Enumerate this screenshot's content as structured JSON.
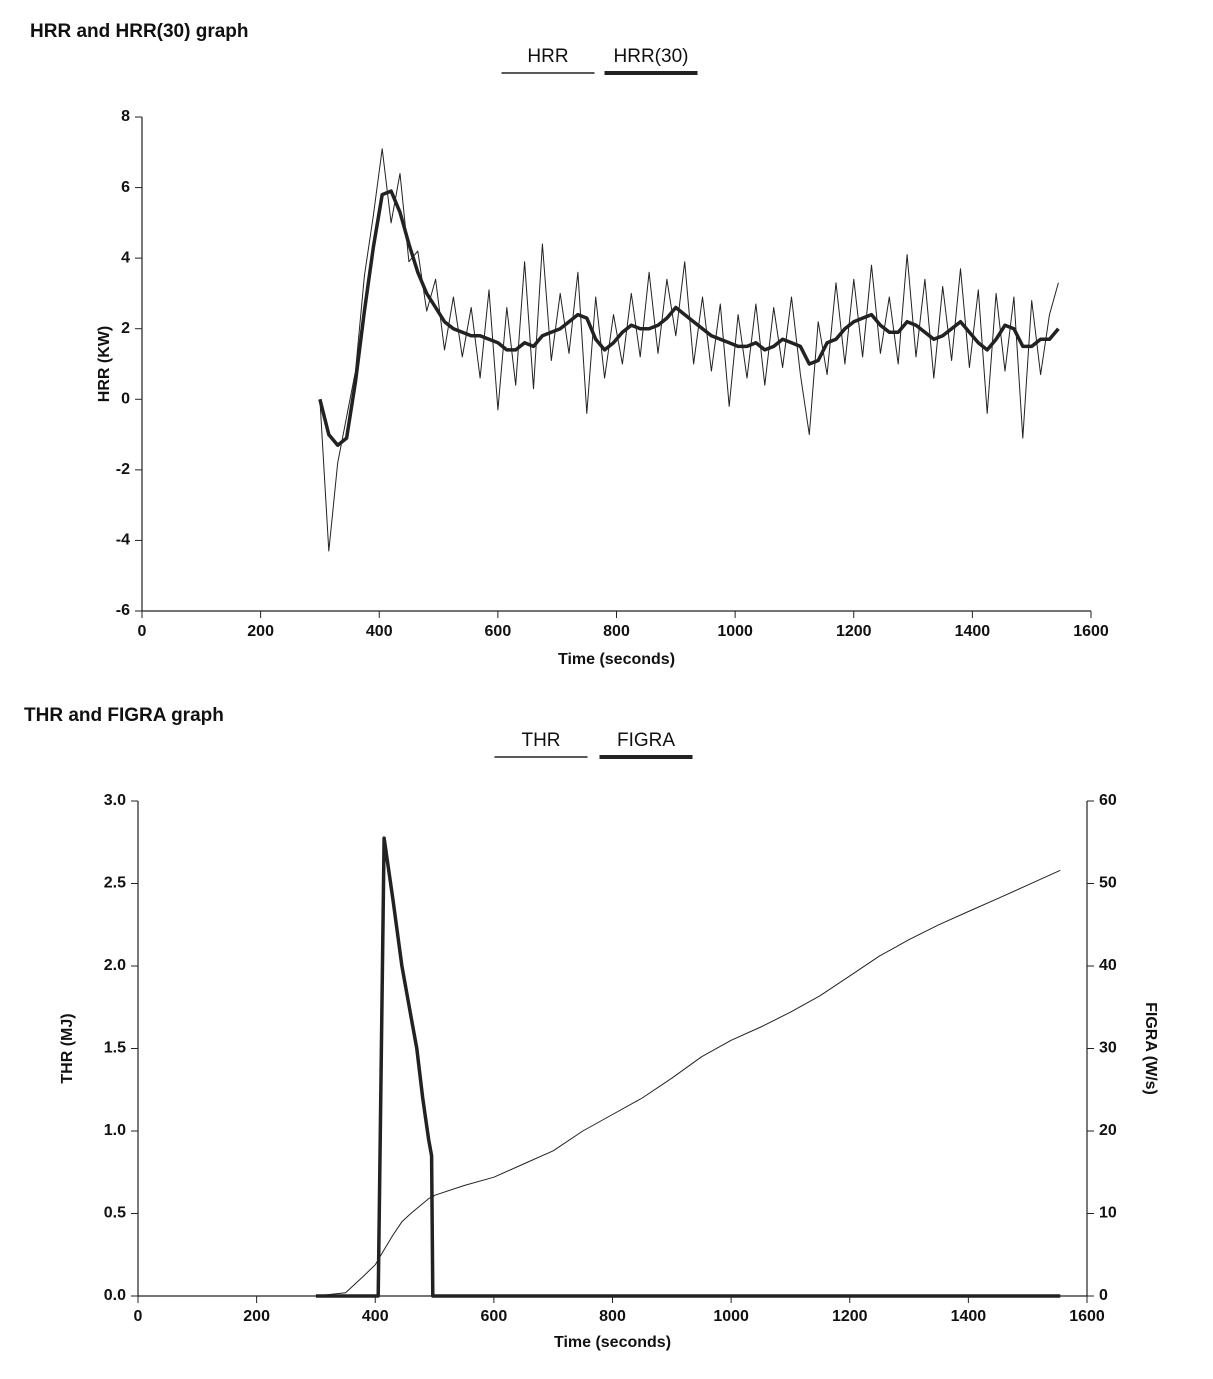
{
  "chart_data": [
    {
      "type": "line",
      "title": "HRR and HRR(30) graph",
      "xlabel": "Time (seconds)",
      "ylabel": "HRR (KW)",
      "xlim": [
        0,
        1600
      ],
      "xticks": [
        0,
        200,
        400,
        600,
        800,
        1000,
        1200,
        1400,
        1600
      ],
      "ylim": [
        -6,
        8
      ],
      "yticks": [
        -6,
        -4,
        -2,
        0,
        2,
        4,
        6,
        8
      ],
      "x": [
        300,
        315,
        330,
        345,
        360,
        375,
        390,
        405,
        420,
        435,
        450,
        465,
        480,
        495,
        510,
        525,
        540,
        555,
        570,
        585,
        600,
        615,
        630,
        645,
        660,
        675,
        690,
        705,
        720,
        735,
        750,
        765,
        780,
        795,
        810,
        825,
        840,
        855,
        870,
        885,
        900,
        915,
        930,
        945,
        960,
        975,
        990,
        1005,
        1020,
        1035,
        1050,
        1065,
        1080,
        1095,
        1110,
        1125,
        1140,
        1155,
        1170,
        1185,
        1200,
        1215,
        1230,
        1245,
        1260,
        1275,
        1290,
        1305,
        1320,
        1335,
        1350,
        1365,
        1380,
        1395,
        1410,
        1425,
        1440,
        1455,
        1470,
        1485,
        1500,
        1515,
        1530,
        1545
      ],
      "series": [
        {
          "name": "HRR",
          "color": "#222222",
          "width": 1,
          "values": [
            0,
            -4.3,
            -1.8,
            -0.5,
            0.8,
            3.5,
            5.2,
            7.1,
            5.0,
            6.4,
            3.9,
            4.2,
            2.5,
            3.4,
            1.4,
            2.9,
            1.2,
            2.6,
            0.6,
            3.1,
            -0.3,
            2.6,
            0.4,
            3.9,
            0.3,
            4.4,
            1.1,
            3.0,
            1.3,
            3.6,
            -0.4,
            2.9,
            0.6,
            2.4,
            1.0,
            3.0,
            1.2,
            3.6,
            1.3,
            3.4,
            1.8,
            3.9,
            1.0,
            2.9,
            0.8,
            2.7,
            -0.2,
            2.4,
            0.6,
            2.7,
            0.4,
            2.6,
            0.9,
            2.9,
            0.7,
            -1.0,
            2.2,
            0.7,
            3.3,
            1.0,
            3.4,
            1.2,
            3.8,
            1.3,
            2.9,
            1.0,
            4.1,
            1.2,
            3.4,
            0.6,
            3.2,
            1.1,
            3.7,
            0.9,
            3.1,
            -0.4,
            3.0,
            0.8,
            2.9,
            -1.1,
            2.8,
            0.7,
            2.4,
            3.3
          ]
        },
        {
          "name": "HRR(30)",
          "color": "#222222",
          "width": 3.5,
          "values": [
            0,
            -1.0,
            -1.3,
            -1.1,
            0.5,
            2.5,
            4.3,
            5.8,
            5.9,
            5.3,
            4.4,
            3.6,
            3.0,
            2.6,
            2.2,
            2.0,
            1.9,
            1.8,
            1.8,
            1.7,
            1.6,
            1.4,
            1.4,
            1.6,
            1.5,
            1.8,
            1.9,
            2.0,
            2.2,
            2.4,
            2.3,
            1.7,
            1.4,
            1.6,
            1.9,
            2.1,
            2.0,
            2.0,
            2.1,
            2.3,
            2.6,
            2.4,
            2.2,
            2.0,
            1.8,
            1.7,
            1.6,
            1.5,
            1.5,
            1.6,
            1.4,
            1.5,
            1.7,
            1.6,
            1.5,
            1.0,
            1.1,
            1.6,
            1.7,
            2.0,
            2.2,
            2.3,
            2.4,
            2.1,
            1.9,
            1.9,
            2.2,
            2.1,
            1.9,
            1.7,
            1.8,
            2.0,
            2.2,
            1.9,
            1.6,
            1.4,
            1.7,
            2.1,
            2.0,
            1.5,
            1.5,
            1.7,
            1.7,
            2.0
          ]
        }
      ]
    },
    {
      "type": "line",
      "title": "THR and FIGRA graph",
      "xlabel": "Time (seconds)",
      "ylabel": "THR (MJ)",
      "y2label": "FIGRA (W/s)",
      "xlim": [
        0,
        1600
      ],
      "xticks": [
        0,
        200,
        400,
        600,
        800,
        1000,
        1200,
        1400,
        1600
      ],
      "ylim": [
        0,
        3
      ],
      "yticks": [
        {
          "value": 0,
          "label": "0.0"
        },
        0.5,
        {
          "value": 1,
          "label": "1.0"
        },
        1.5,
        {
          "value": 2,
          "label": "2.0"
        },
        2.5,
        {
          "value": 3,
          "label": "3.0"
        }
      ],
      "y2lim": [
        0,
        60
      ],
      "y2ticks": [
        0,
        10,
        20,
        30,
        40,
        50,
        60
      ],
      "x": [
        300,
        350,
        380,
        400,
        405,
        415,
        430,
        445,
        460,
        470,
        480,
        490,
        495,
        497,
        500,
        550,
        600,
        650,
        700,
        750,
        800,
        850,
        900,
        950,
        1000,
        1050,
        1100,
        1150,
        1200,
        1250,
        1300,
        1350,
        1400,
        1450,
        1500,
        1555
      ],
      "series": [
        {
          "name": "THR",
          "color": "#222222",
          "width": 1,
          "values": [
            0,
            0.02,
            0.12,
            0.19,
            0.22,
            0.28,
            0.37,
            0.45,
            0.5,
            0.53,
            0.56,
            0.59,
            0.6,
            0.6,
            0.61,
            0.67,
            0.72,
            0.8,
            0.88,
            1.0,
            1.1,
            1.2,
            1.32,
            1.45,
            1.55,
            1.63,
            1.72,
            1.82,
            1.94,
            2.06,
            2.16,
            2.25,
            2.33,
            2.41,
            2.49,
            2.58
          ]
        },
        {
          "name": "FIGRA",
          "color": "#222222",
          "width": 3.5,
          "axis": "y2",
          "values": [
            0,
            0,
            0,
            0,
            0,
            55.5,
            48,
            40,
            34,
            30,
            24,
            19,
            17,
            0,
            0,
            0,
            0,
            0,
            0,
            0,
            0,
            0,
            0,
            0,
            0,
            0,
            0,
            0,
            0,
            0,
            0,
            0,
            0,
            0,
            0,
            0
          ]
        }
      ]
    }
  ]
}
